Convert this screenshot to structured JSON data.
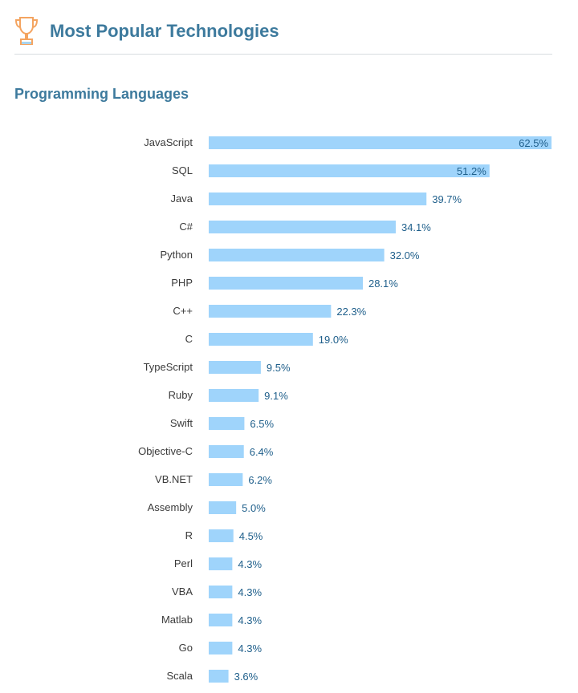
{
  "header": {
    "title": "Most Popular Technologies",
    "icon": "trophy-icon"
  },
  "section": {
    "title": "Programming Languages"
  },
  "colors": {
    "bar": "#9fd4fb",
    "value_text": "#1f5f8b",
    "title_text": "#3d7a9d",
    "trophy": "#f4a460"
  },
  "chart_data": {
    "type": "bar",
    "orientation": "horizontal",
    "title": "Programming Languages",
    "categories": [
      "JavaScript",
      "SQL",
      "Java",
      "C#",
      "Python",
      "PHP",
      "C++",
      "C",
      "TypeScript",
      "Ruby",
      "Swift",
      "Objective-C",
      "VB.NET",
      "Assembly",
      "R",
      "Perl",
      "VBA",
      "Matlab",
      "Go",
      "Scala"
    ],
    "values": [
      62.5,
      51.2,
      39.7,
      34.1,
      32.0,
      28.1,
      22.3,
      19.0,
      9.5,
      9.1,
      6.5,
      6.4,
      6.2,
      5.0,
      4.5,
      4.3,
      4.3,
      4.3,
      4.3,
      3.6
    ],
    "value_labels": [
      "62.5%",
      "51.2%",
      "39.7%",
      "34.1%",
      "32.0%",
      "28.1%",
      "22.3%",
      "19.0%",
      "9.5%",
      "9.1%",
      "6.5%",
      "6.4%",
      "6.2%",
      "5.0%",
      "4.5%",
      "4.3%",
      "4.3%",
      "4.3%",
      "4.3%",
      "3.6%"
    ],
    "unit": "%",
    "xlim": [
      0,
      62.5
    ],
    "grid": false
  }
}
